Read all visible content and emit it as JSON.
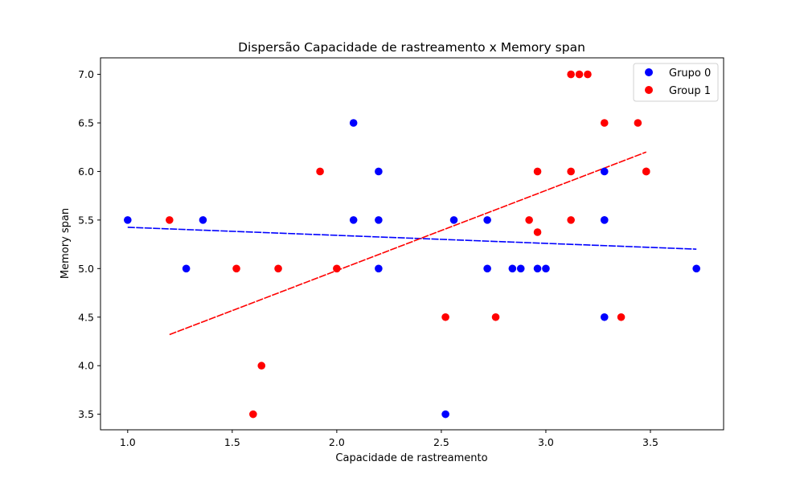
{
  "chart_data": {
    "type": "scatter",
    "title": "Dispersão Capacidade de rastreamento x Memory span",
    "xlabel": "Capacidade de rastreamento",
    "ylabel": "Memory span",
    "xlim": [
      0.87,
      3.85
    ],
    "ylim": [
      3.34,
      7.17
    ],
    "xticks": [
      1.0,
      1.5,
      2.0,
      2.5,
      3.0,
      3.5
    ],
    "xtick_labels": [
      "1.0",
      "1.5",
      "2.0",
      "2.5",
      "3.0",
      "3.5"
    ],
    "yticks": [
      3.5,
      4.0,
      4.5,
      5.0,
      5.5,
      6.0,
      6.5,
      7.0
    ],
    "ytick_labels": [
      "3.5",
      "4.0",
      "4.5",
      "5.0",
      "5.5",
      "6.0",
      "6.5",
      "7.0"
    ],
    "grid": false,
    "legend_position": "top-right",
    "series": [
      {
        "name": "Grupo 0",
        "color": "#0000ff",
        "x": [
          1.0,
          1.28,
          1.36,
          2.08,
          2.08,
          2.2,
          2.2,
          2.2,
          2.52,
          2.56,
          2.72,
          2.72,
          2.84,
          2.88,
          2.96,
          3.0,
          3.28,
          3.28,
          3.28,
          3.28,
          3.72
        ],
        "y": [
          5.5,
          5.0,
          5.5,
          6.5,
          5.5,
          6.0,
          5.5,
          5.0,
          3.5,
          5.5,
          5.5,
          5.0,
          5.0,
          5.0,
          5.0,
          5.0,
          6.0,
          5.5,
          5.5,
          4.5,
          5.0
        ],
        "trend": {
          "x": [
            1.0,
            3.72
          ],
          "y": [
            5.425,
            5.2
          ]
        }
      },
      {
        "name": "Group 1",
        "color": "#ff0000",
        "x": [
          1.2,
          1.52,
          1.6,
          1.64,
          1.72,
          1.92,
          2.0,
          2.52,
          2.76,
          2.92,
          2.96,
          2.96,
          3.12,
          3.12,
          3.12,
          3.16,
          3.2,
          3.28,
          3.36,
          3.44,
          3.48,
          3.48
        ],
        "y": [
          5.5,
          5.0,
          3.5,
          4.0,
          5.0,
          6.0,
          5.0,
          4.5,
          4.5,
          5.5,
          6.0,
          5.375,
          7.0,
          6.0,
          5.5,
          7.0,
          7.0,
          6.5,
          4.5,
          6.5,
          6.0,
          6.0
        ],
        "trend": {
          "x": [
            1.2,
            3.48
          ],
          "y": [
            4.32,
            6.2
          ]
        }
      }
    ]
  }
}
